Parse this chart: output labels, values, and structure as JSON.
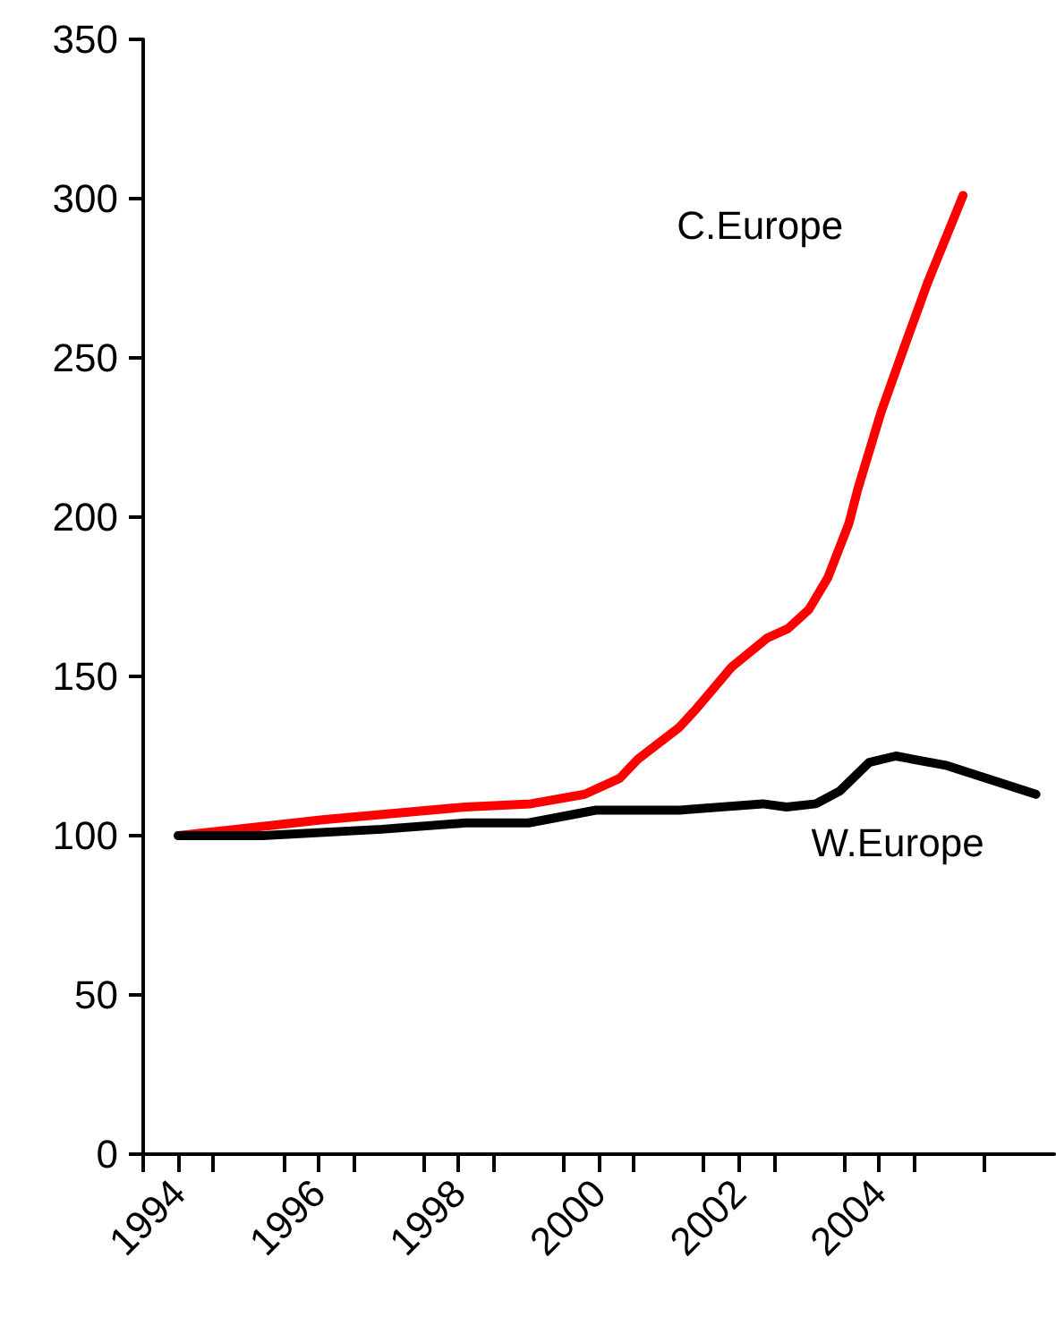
{
  "chart_data": {
    "type": "line",
    "xlim": [
      1993.5,
      2006.5
    ],
    "ylim": [
      0,
      350
    ],
    "yticks": [
      0,
      50,
      100,
      150,
      200,
      250,
      300,
      350
    ],
    "xticks": [
      {
        "value": 1993.5,
        "label": null
      },
      {
        "value": 1994,
        "label": "1994"
      },
      {
        "value": 1994.5,
        "label": null
      },
      {
        "value": 1995.5,
        "label": null
      },
      {
        "value": 1996,
        "label": "1996"
      },
      {
        "value": 1996.5,
        "label": null
      },
      {
        "value": 1997.5,
        "label": null
      },
      {
        "value": 1998,
        "label": "1998"
      },
      {
        "value": 1998.5,
        "label": null
      },
      {
        "value": 1999.5,
        "label": null
      },
      {
        "value": 2000,
        "label": "2000"
      },
      {
        "value": 2000.5,
        "label": null
      },
      {
        "value": 2001.5,
        "label": null
      },
      {
        "value": 2002,
        "label": "2002"
      },
      {
        "value": 2002.5,
        "label": null
      },
      {
        "value": 2003.5,
        "label": null
      },
      {
        "value": 2004,
        "label": "2004"
      },
      {
        "value": 2004.5,
        "label": null
      },
      {
        "value": 2005.5,
        "label": null
      }
    ],
    "grid": false,
    "marker": "none",
    "line_style": "solid",
    "series": [
      {
        "name": "C.Europe",
        "color": "#ff0000",
        "x": [
          1994,
          1996.06,
          1998.1,
          1999.03,
          1999.8,
          2000.3,
          2000.56,
          2001.15,
          2001.4,
          2001.9,
          2002.4,
          2002.7,
          2003.0,
          2003.27,
          2003.57,
          2003.7,
          2004.03,
          2004.37,
          2004.7,
          2005.2
        ],
        "values": [
          100,
          105,
          109,
          110,
          113,
          118,
          124,
          134,
          140,
          153,
          162,
          165,
          171,
          181,
          198,
          209,
          233,
          254,
          274,
          301
        ]
      },
      {
        "name": "W.Europe",
        "color": "#000000",
        "x": [
          1994,
          1995.2,
          1996.9,
          1998.1,
          1999.0,
          1999.96,
          2001.15,
          2002.34,
          2002.68,
          2003.1,
          2003.44,
          2003.86,
          2004.24,
          2004.97,
          2006.24
        ],
        "values": [
          100,
          100,
          102,
          104,
          104,
          108,
          108,
          110,
          109,
          110,
          114,
          123,
          125,
          122,
          113
        ]
      }
    ]
  }
}
